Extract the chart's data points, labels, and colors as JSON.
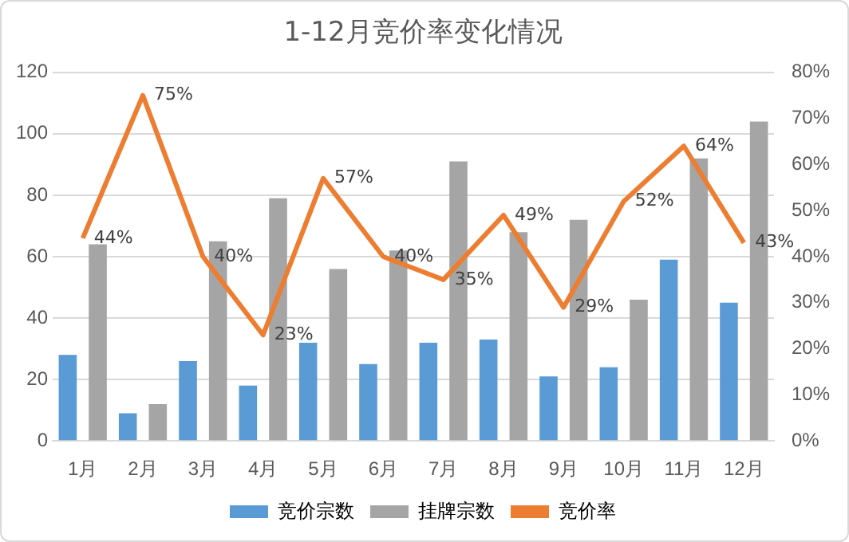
{
  "chart_data": {
    "type": "bar",
    "title": "1-12月竞价率变化情况",
    "categories": [
      "1月",
      "2月",
      "3月",
      "4月",
      "5月",
      "6月",
      "7月",
      "8月",
      "9月",
      "10月",
      "11月",
      "12月"
    ],
    "series": [
      {
        "name": "竞价宗数",
        "color": "#5b9bd5",
        "values": [
          28,
          9,
          26,
          18,
          32,
          25,
          32,
          33,
          21,
          24,
          59,
          45
        ]
      },
      {
        "name": "挂牌宗数",
        "color": "#a5a5a5",
        "values": [
          64,
          12,
          65,
          79,
          56,
          62,
          91,
          68,
          72,
          46,
          92,
          104
        ]
      },
      {
        "name": "竞价率",
        "type": "line",
        "axis": "y2",
        "color": "#ed7d31",
        "values": [
          44,
          75,
          40,
          23,
          57,
          40,
          35,
          49,
          29,
          52,
          64,
          43
        ],
        "value_labels": [
          "44%",
          "75%",
          "40%",
          "23%",
          "57%",
          "40%",
          "35%",
          "49%",
          "29%",
          "52%",
          "64%",
          "43%"
        ]
      }
    ],
    "ylim": [
      0,
      120
    ],
    "yticks": [
      0,
      20,
      40,
      60,
      80,
      100,
      120
    ],
    "y2lim": [
      0,
      80
    ],
    "y2ticks": [
      {
        "value": 0,
        "label": "0%"
      },
      {
        "value": 10,
        "label": "10%"
      },
      {
        "value": 20,
        "label": "20%"
      },
      {
        "value": 30,
        "label": "30%"
      },
      {
        "value": 40,
        "label": "40%"
      },
      {
        "value": 50,
        "label": "50%"
      },
      {
        "value": 60,
        "label": "60%"
      },
      {
        "value": 70,
        "label": "70%"
      },
      {
        "value": 80,
        "label": "80%"
      }
    ],
    "grid": "y",
    "legend": "bottom",
    "marker": "none"
  }
}
